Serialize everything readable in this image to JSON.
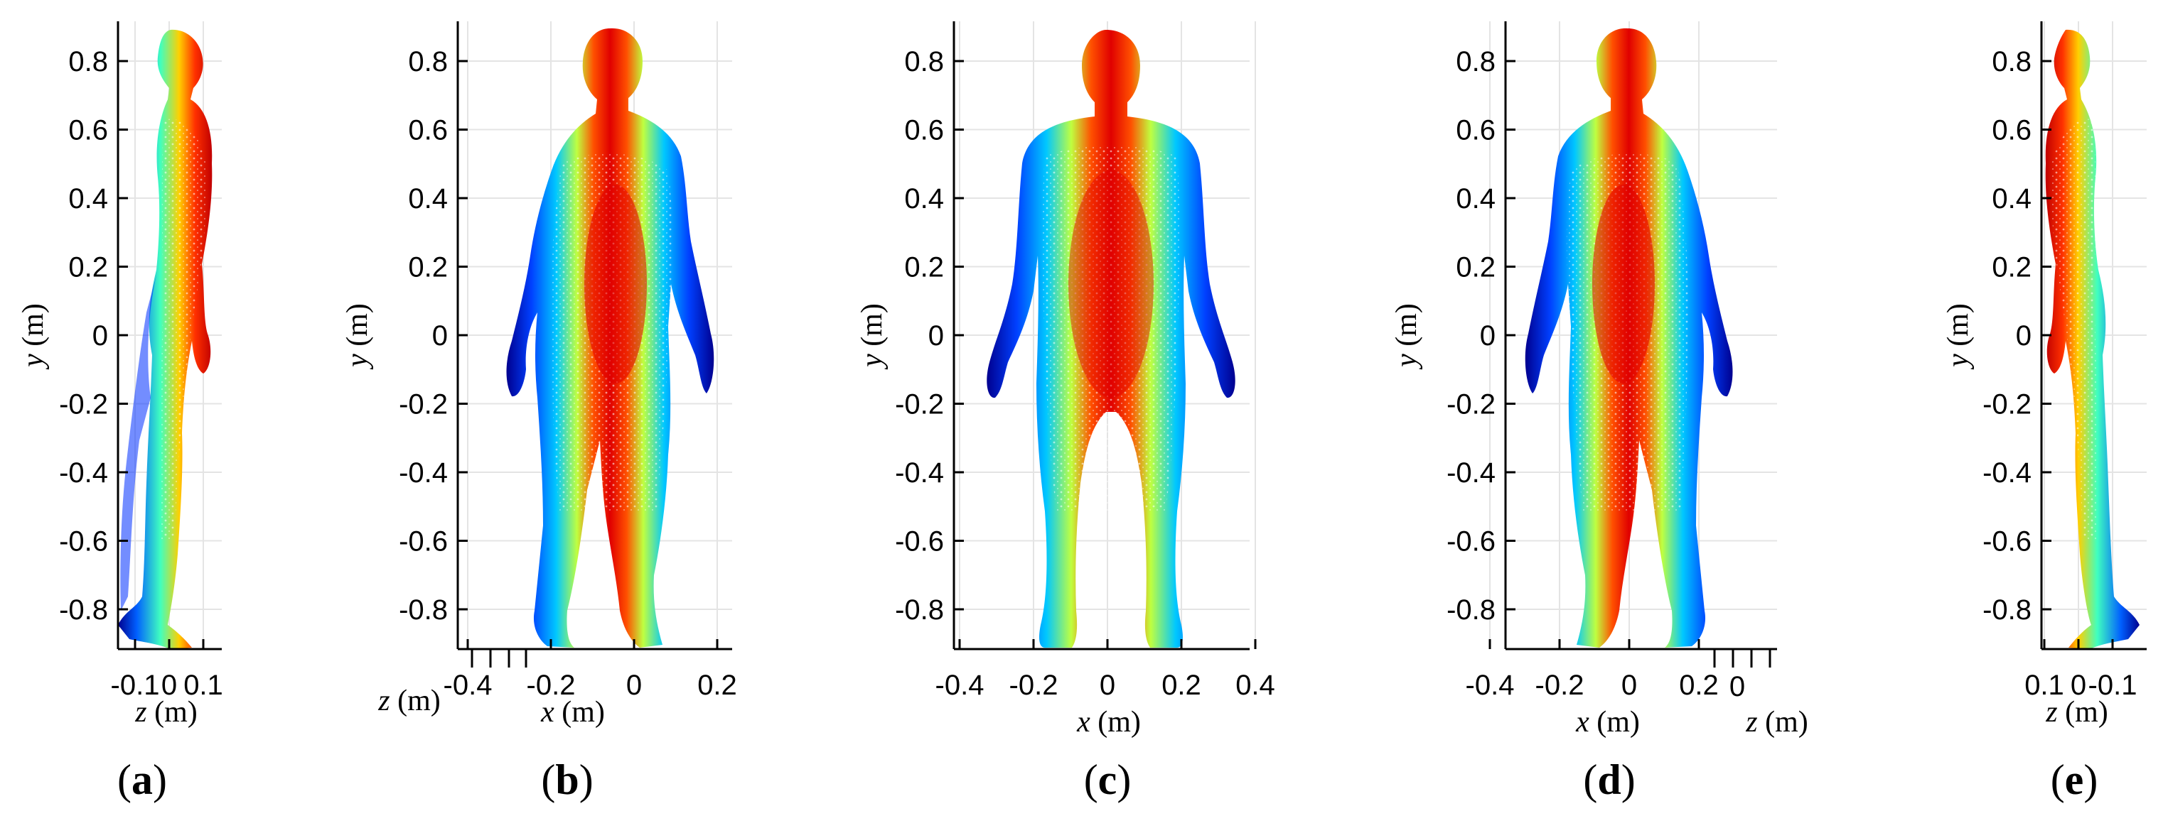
{
  "figure": {
    "panels": [
      {
        "id": "a",
        "tag": "a",
        "x_axis": {
          "var": "z",
          "unit": " (m)",
          "ticks": [
            {
              "v": -0.1,
              "l": "-0.1"
            },
            {
              "v": 0,
              "l": "0"
            },
            {
              "v": 0.1,
              "l": "0.1"
            }
          ]
        },
        "y_axis": {
          "var": "y",
          "unit": " (m)"
        },
        "view": "side-right"
      },
      {
        "id": "b",
        "tag": "b",
        "x_axis": {
          "var": "x",
          "unit": " (m)",
          "ticks": [
            {
              "v": -0.4,
              "l": "-0.4"
            },
            {
              "v": -0.2,
              "l": "-0.2"
            },
            {
              "v": 0,
              "l": "0"
            },
            {
              "v": 0.2,
              "l": "0.2"
            }
          ]
        },
        "z_axis": {
          "var": "z",
          "unit": " (m)"
        },
        "y_axis": {
          "var": "y",
          "unit": " (m)"
        },
        "view": "oblique-left"
      },
      {
        "id": "c",
        "tag": "c",
        "x_axis": {
          "var": "x",
          "unit": " (m)",
          "ticks": [
            {
              "v": -0.4,
              "l": "-0.4"
            },
            {
              "v": -0.2,
              "l": "-0.2"
            },
            {
              "v": 0,
              "l": "0"
            },
            {
              "v": 0.2,
              "l": "0.2"
            },
            {
              "v": 0.4,
              "l": "0.4"
            }
          ]
        },
        "y_axis": {
          "var": "y",
          "unit": " (m)"
        },
        "view": "front"
      },
      {
        "id": "d",
        "tag": "d",
        "x_axis": {
          "var": "x",
          "unit": " (m)",
          "ticks": [
            {
              "v": -0.4,
              "l": "-0.4"
            },
            {
              "v": -0.2,
              "l": "-0.2"
            },
            {
              "v": 0,
              "l": "0"
            },
            {
              "v": 0.2,
              "l": "0.2"
            }
          ]
        },
        "z_axis": {
          "var": "z",
          "unit": " (m)",
          "ticks": [
            {
              "v": 0,
              "l": "0"
            }
          ]
        },
        "y_axis": {
          "var": "y",
          "unit": " (m)"
        },
        "view": "oblique-right"
      },
      {
        "id": "e",
        "tag": "e",
        "x_axis": {
          "var": "z",
          "unit": " (m)",
          "ticks": [
            {
              "v": 0.1,
              "l": "0.1"
            },
            {
              "v": 0,
              "l": "0"
            },
            {
              "v": -0.1,
              "l": "-0.1"
            }
          ]
        },
        "y_axis": {
          "var": "y",
          "unit": " (m)"
        },
        "view": "side-left"
      }
    ],
    "y_ticks": [
      {
        "v": 0.8,
        "l": "0.8"
      },
      {
        "v": 0.6,
        "l": "0.6"
      },
      {
        "v": 0.4,
        "l": "0.4"
      },
      {
        "v": 0.2,
        "l": "0.2"
      },
      {
        "v": 0,
        "l": "0"
      },
      {
        "v": -0.2,
        "l": "-0.2"
      },
      {
        "v": -0.4,
        "l": "-0.4"
      },
      {
        "v": -0.6,
        "l": "-0.6"
      },
      {
        "v": -0.8,
        "l": "-0.8"
      }
    ],
    "colormap": [
      "#00008f",
      "#0040ff",
      "#00c8ff",
      "#40ffbf",
      "#bfff40",
      "#ffd000",
      "#ff5000",
      "#e00000"
    ]
  }
}
